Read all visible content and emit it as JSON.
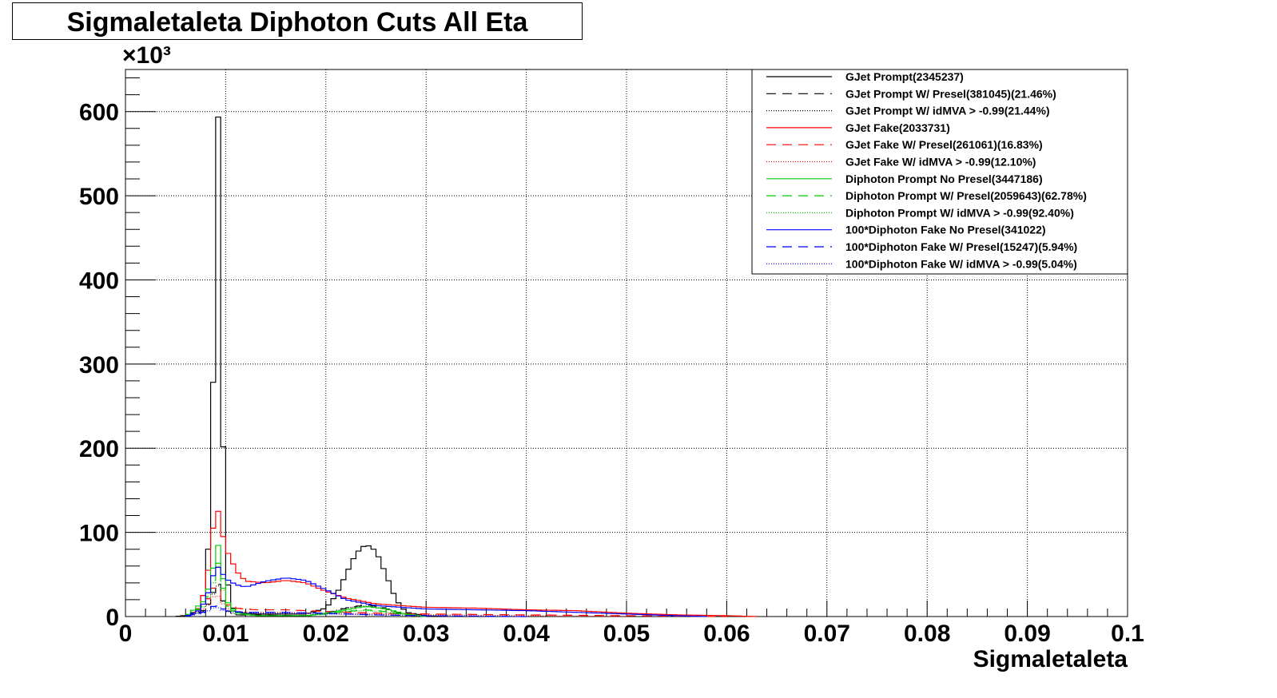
{
  "title": "Sigmaletaleta Diphoton Cuts All Eta",
  "chart_data": {
    "type": "line",
    "title": "Sigmaletaleta Diphoton Cuts All Eta",
    "xlabel": "Sigmaletaleta",
    "ylabel": "",
    "y_multiplier": "×10³",
    "xlim": [
      0,
      0.1
    ],
    "ylim": [
      0,
      650
    ],
    "x_ticks": [
      "0",
      "0.01",
      "0.02",
      "0.03",
      "0.04",
      "0.05",
      "0.06",
      "0.07",
      "0.08",
      "0.09",
      "0.1"
    ],
    "y_ticks": [
      "0",
      "100",
      "200",
      "300",
      "400",
      "500",
      "600"
    ],
    "grid": true,
    "legend_position": "top-right",
    "series": [
      {
        "name": "GJet Prompt(2345237)",
        "color": "#000000",
        "style": "solid",
        "points": [
          [
            0.005,
            0
          ],
          [
            0.0065,
            2
          ],
          [
            0.0075,
            10
          ],
          [
            0.008,
            40
          ],
          [
            0.0085,
            120
          ],
          [
            0.0088,
            310
          ],
          [
            0.009,
            560
          ],
          [
            0.0092,
            618
          ],
          [
            0.0094,
            520
          ],
          [
            0.0097,
            230
          ],
          [
            0.01,
            60
          ],
          [
            0.0105,
            15
          ],
          [
            0.011,
            5
          ],
          [
            0.013,
            3
          ],
          [
            0.018,
            3
          ],
          [
            0.02,
            10
          ],
          [
            0.021,
            25
          ],
          [
            0.022,
            50
          ],
          [
            0.023,
            75
          ],
          [
            0.024,
            86
          ],
          [
            0.025,
            78
          ],
          [
            0.026,
            50
          ],
          [
            0.027,
            20
          ],
          [
            0.028,
            5
          ],
          [
            0.03,
            1
          ],
          [
            0.032,
            0
          ]
        ]
      },
      {
        "name": "GJet Prompt W/ Presel(381045)(21.46%)",
        "color": "#000000",
        "style": "dash",
        "points": [
          [
            0.006,
            0
          ],
          [
            0.008,
            8
          ],
          [
            0.0088,
            30
          ],
          [
            0.0092,
            40
          ],
          [
            0.0096,
            25
          ],
          [
            0.01,
            8
          ],
          [
            0.011,
            2
          ],
          [
            0.018,
            1
          ],
          [
            0.02,
            4
          ],
          [
            0.022,
            10
          ],
          [
            0.024,
            14
          ],
          [
            0.026,
            10
          ],
          [
            0.027,
            5
          ],
          [
            0.029,
            1
          ],
          [
            0.031,
            0
          ]
        ]
      },
      {
        "name": "GJet Prompt W/ idMVA > -0.99(21.44%)",
        "color": "#000000",
        "style": "dot",
        "points": [
          [
            0.006,
            0
          ],
          [
            0.008,
            7
          ],
          [
            0.0088,
            28
          ],
          [
            0.0092,
            38
          ],
          [
            0.0096,
            24
          ],
          [
            0.01,
            8
          ],
          [
            0.011,
            2
          ],
          [
            0.018,
            1
          ],
          [
            0.02,
            4
          ],
          [
            0.022,
            10
          ],
          [
            0.024,
            13
          ],
          [
            0.026,
            9
          ],
          [
            0.027,
            5
          ],
          [
            0.029,
            1
          ],
          [
            0.031,
            0
          ]
        ]
      },
      {
        "name": "GJet Fake(2033731)",
        "color": "#ff0000",
        "style": "solid",
        "points": [
          [
            0.006,
            0
          ],
          [
            0.0075,
            10
          ],
          [
            0.0085,
            70
          ],
          [
            0.009,
            140
          ],
          [
            0.0095,
            110
          ],
          [
            0.01,
            80
          ],
          [
            0.0105,
            70
          ],
          [
            0.011,
            55
          ],
          [
            0.012,
            42
          ],
          [
            0.014,
            40
          ],
          [
            0.016,
            43
          ],
          [
            0.018,
            40
          ],
          [
            0.02,
            30
          ],
          [
            0.022,
            22
          ],
          [
            0.025,
            15
          ],
          [
            0.03,
            11
          ],
          [
            0.035,
            10
          ],
          [
            0.04,
            8
          ],
          [
            0.045,
            7
          ],
          [
            0.05,
            4
          ],
          [
            0.055,
            2
          ],
          [
            0.06,
            1
          ],
          [
            0.063,
            0
          ]
        ]
      },
      {
        "name": "GJet Fake W/ Presel(261061)(16.83%)",
        "color": "#ff0000",
        "style": "dash",
        "points": [
          [
            0.006,
            0
          ],
          [
            0.008,
            15
          ],
          [
            0.009,
            40
          ],
          [
            0.0095,
            28
          ],
          [
            0.01,
            15
          ],
          [
            0.011,
            10
          ],
          [
            0.013,
            8
          ],
          [
            0.016,
            8
          ],
          [
            0.02,
            6
          ],
          [
            0.025,
            4
          ],
          [
            0.03,
            3
          ],
          [
            0.04,
            2
          ],
          [
            0.05,
            1
          ],
          [
            0.06,
            0
          ]
        ]
      },
      {
        "name": "GJet Fake W/ idMVA > -0.99(12.10%)",
        "color": "#ff0000",
        "style": "dot",
        "points": [
          [
            0.006,
            0
          ],
          [
            0.008,
            10
          ],
          [
            0.009,
            28
          ],
          [
            0.0095,
            20
          ],
          [
            0.01,
            10
          ],
          [
            0.011,
            6
          ],
          [
            0.013,
            5
          ],
          [
            0.016,
            5
          ],
          [
            0.02,
            4
          ],
          [
            0.025,
            3
          ],
          [
            0.03,
            2
          ],
          [
            0.04,
            1
          ],
          [
            0.05,
            0
          ]
        ]
      },
      {
        "name": "Diphoton Prompt No Presel(3447186)",
        "color": "#00cc00",
        "style": "solid",
        "points": [
          [
            0.006,
            0
          ],
          [
            0.008,
            20
          ],
          [
            0.0088,
            60
          ],
          [
            0.0092,
            88
          ],
          [
            0.0096,
            60
          ],
          [
            0.01,
            20
          ],
          [
            0.011,
            5
          ],
          [
            0.013,
            1
          ],
          [
            0.018,
            1
          ],
          [
            0.02,
            4
          ],
          [
            0.022,
            8
          ],
          [
            0.024,
            12
          ],
          [
            0.026,
            9
          ],
          [
            0.028,
            3
          ],
          [
            0.03,
            0
          ]
        ]
      },
      {
        "name": "Diphoton Prompt W/ Presel(2059643)(62.78%)",
        "color": "#00cc00",
        "style": "dash",
        "points": [
          [
            0.006,
            0
          ],
          [
            0.008,
            14
          ],
          [
            0.0088,
            45
          ],
          [
            0.0092,
            66
          ],
          [
            0.0096,
            45
          ],
          [
            0.01,
            15
          ],
          [
            0.011,
            4
          ],
          [
            0.013,
            1
          ],
          [
            0.018,
            1
          ],
          [
            0.02,
            3
          ],
          [
            0.022,
            6
          ],
          [
            0.024,
            8
          ],
          [
            0.026,
            6
          ],
          [
            0.028,
            2
          ],
          [
            0.03,
            0
          ]
        ]
      },
      {
        "name": "Diphoton Prompt W/ idMVA > -0.99(92.40%)",
        "color": "#00cc00",
        "style": "dot",
        "points": [
          [
            0.006,
            0
          ],
          [
            0.008,
            13
          ],
          [
            0.0088,
            42
          ],
          [
            0.0092,
            62
          ],
          [
            0.0096,
            42
          ],
          [
            0.01,
            14
          ],
          [
            0.011,
            4
          ],
          [
            0.013,
            1
          ],
          [
            0.018,
            1
          ],
          [
            0.02,
            3
          ],
          [
            0.022,
            6
          ],
          [
            0.024,
            7
          ],
          [
            0.026,
            5
          ],
          [
            0.028,
            2
          ],
          [
            0.03,
            0
          ]
        ]
      },
      {
        "name": "100*Diphoton Fake No Presel(341022)",
        "color": "#0000ff",
        "style": "solid",
        "points": [
          [
            0.006,
            0
          ],
          [
            0.0075,
            8
          ],
          [
            0.0085,
            35
          ],
          [
            0.009,
            62
          ],
          [
            0.0095,
            55
          ],
          [
            0.01,
            45
          ],
          [
            0.011,
            38
          ],
          [
            0.012,
            35
          ],
          [
            0.014,
            42
          ],
          [
            0.016,
            46
          ],
          [
            0.018,
            43
          ],
          [
            0.02,
            32
          ],
          [
            0.022,
            20
          ],
          [
            0.025,
            13
          ],
          [
            0.03,
            9
          ],
          [
            0.035,
            8
          ],
          [
            0.04,
            7
          ],
          [
            0.045,
            5
          ],
          [
            0.05,
            3
          ],
          [
            0.055,
            1
          ],
          [
            0.058,
            0
          ]
        ]
      },
      {
        "name": "100*Diphoton Fake W/ Presel(15247)(5.94%)",
        "color": "#0000ff",
        "style": "dash",
        "points": [
          [
            0.006,
            0
          ],
          [
            0.008,
            6
          ],
          [
            0.009,
            14
          ],
          [
            0.0095,
            11
          ],
          [
            0.01,
            7
          ],
          [
            0.012,
            5
          ],
          [
            0.016,
            5
          ],
          [
            0.02,
            4
          ],
          [
            0.025,
            2
          ],
          [
            0.03,
            1
          ],
          [
            0.04,
            0
          ]
        ]
      },
      {
        "name": "100*Diphoton Fake W/ idMVA > -0.99(5.04%)",
        "color": "#0000ff",
        "style": "dot",
        "points": [
          [
            0.006,
            0
          ],
          [
            0.008,
            5
          ],
          [
            0.009,
            12
          ],
          [
            0.0095,
            9
          ],
          [
            0.01,
            6
          ],
          [
            0.012,
            4
          ],
          [
            0.016,
            4
          ],
          [
            0.02,
            3
          ],
          [
            0.025,
            2
          ],
          [
            0.03,
            1
          ],
          [
            0.04,
            0
          ]
        ]
      }
    ]
  }
}
